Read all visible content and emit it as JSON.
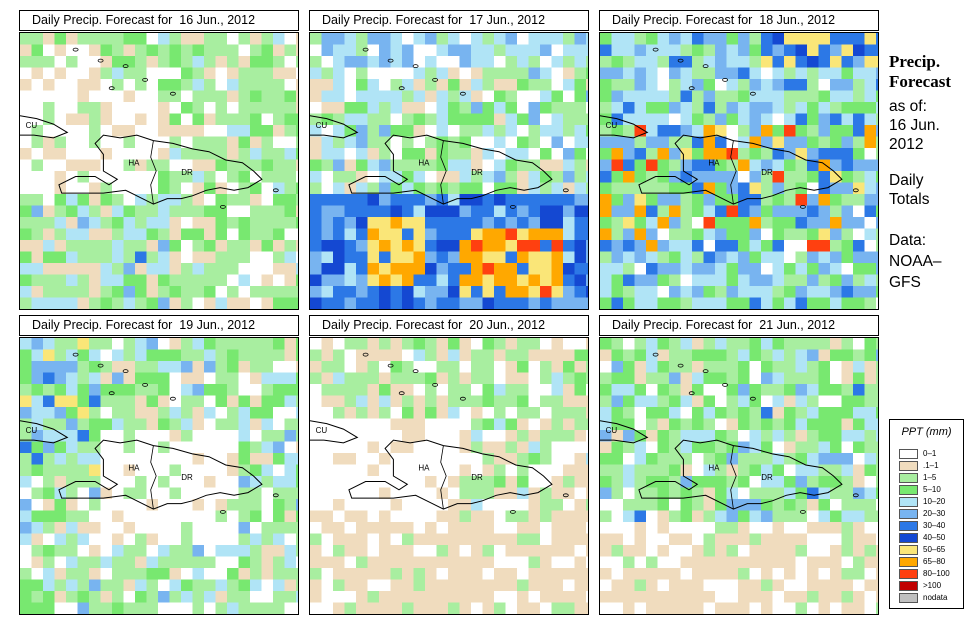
{
  "panels": [
    {
      "title": "Daily Precip. Forecast for  16 Jun., 2012",
      "scenario": "light"
    },
    {
      "title": "Daily Precip. Forecast for  17 Jun., 2012",
      "scenario": "heavy_south"
    },
    {
      "title": "Daily Precip. Forecast for  18 Jun., 2012",
      "scenario": "scattered"
    },
    {
      "title": "Daily Precip. Forecast for  19 Jun., 2012",
      "scenario": "moderate_nw"
    },
    {
      "title": "Daily Precip. Forecast for  20 Jun., 2012",
      "scenario": "dry"
    },
    {
      "title": "Daily Precip. Forecast for  21 Jun., 2012",
      "scenario": "mixed"
    }
  ],
  "map_labels": {
    "cuba": "CU",
    "haiti": "HA",
    "dominican_republic": "DR"
  },
  "sidebar": {
    "heading_line1": "Precip.",
    "heading_line2": "Forecast",
    "asof_line1": "as of:",
    "asof_line2": "16 Jun.",
    "asof_line3": "2012",
    "totals_line1": "Daily",
    "totals_line2": "Totals",
    "source_line1": "Data:",
    "source_line2": "NOAA–",
    "source_line3": "GFS"
  },
  "legend": {
    "title": "PPT (mm)",
    "classes": [
      {
        "label": "0–1",
        "color": "#ffffff"
      },
      {
        "label": ".1–1",
        "color": "#f0dcbe"
      },
      {
        "label": "1–5",
        "color": "#a8eea0"
      },
      {
        "label": "5–10",
        "color": "#78e870"
      },
      {
        "label": "10–20",
        "color": "#b0e4f6"
      },
      {
        "label": "20–30",
        "color": "#78b4f0"
      },
      {
        "label": "30–40",
        "color": "#2c78e6"
      },
      {
        "label": "40–50",
        "color": "#1448d2"
      },
      {
        "label": "50–65",
        "color": "#fae678"
      },
      {
        "label": "65–80",
        "color": "#ffa800"
      },
      {
        "label": "80–100",
        "color": "#ff4010"
      },
      {
        "label": ">100",
        "color": "#c00000"
      },
      {
        "label": "nodata",
        "color": "#c0c0c0"
      }
    ]
  }
}
